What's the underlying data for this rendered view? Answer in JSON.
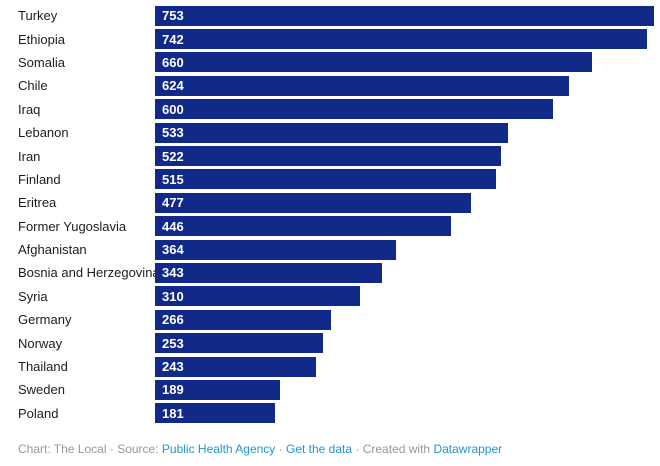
{
  "colors": {
    "bar": "#112a8a",
    "value_text": "#ffffff",
    "category_text": "#1d1d1d",
    "footer_muted": "#979797",
    "footer_link": "#2196d0",
    "background": "#ffffff"
  },
  "chart_data": {
    "type": "bar",
    "orientation": "horizontal",
    "title": "",
    "xlabel": "",
    "ylabel": "",
    "max_value": 753,
    "value_labels_inside_bars": true,
    "grid": false,
    "legend": false,
    "categories": [
      "Turkey",
      "Ethiopia",
      "Somalia",
      "Chile",
      "Iraq",
      "Lebanon",
      "Iran",
      "Finland",
      "Eritrea",
      "Former Yugoslavia",
      "Afghanistan",
      "Bosnia and Herzegovina",
      "Syria",
      "Germany",
      "Norway",
      "Thailand",
      "Sweden",
      "Poland"
    ],
    "values": [
      753,
      742,
      660,
      624,
      600,
      533,
      522,
      515,
      477,
      446,
      364,
      343,
      310,
      266,
      253,
      243,
      189,
      181
    ]
  },
  "footer": {
    "chart_credit": "Chart: The Local",
    "separator": "·",
    "source_label": "Source:",
    "source_link": "Public Health Agency",
    "get_data_link": "Get the data",
    "created_with": "Created with",
    "tool_link": "Datawrapper"
  }
}
